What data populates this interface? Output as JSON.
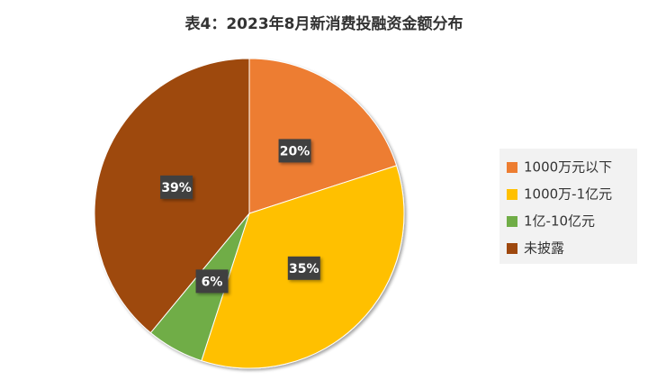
{
  "chart_data": {
    "type": "pie",
    "title": "表4：2023年8月新消费投融资金额分布",
    "categories": [
      "1000万元以下",
      "1000万-1亿元",
      "1亿-10亿元",
      "未披露"
    ],
    "values": [
      20,
      35,
      6,
      39
    ],
    "value_labels": [
      "20%",
      "35%",
      "6%",
      "39%"
    ],
    "colors": [
      "#ED7D31",
      "#FFC000",
      "#70AD47",
      "#9E480E"
    ],
    "legend": "right"
  }
}
